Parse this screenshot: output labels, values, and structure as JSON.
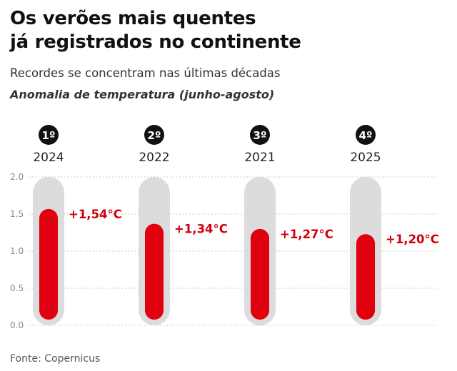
{
  "header": {
    "title_line1": "Os verões mais quentes",
    "title_line2": "já registrados no continente",
    "subtitle": "Recordes se concentram nas últimas décadas",
    "measure_label": "Anomalia de temperatura (junho-agosto)"
  },
  "footer": {
    "source": "Fonte: Copernicus"
  },
  "colors": {
    "fill": "#e0000f",
    "tube": "#dcdcdc",
    "badge": "#111111",
    "grid": "#bbbbbb",
    "value_text": "#d0000f"
  },
  "chart_data": {
    "type": "bar",
    "ylim": [
      0,
      2.0
    ],
    "yticks": [
      "0.0",
      "0.5",
      "1.0",
      "1.5",
      "2.0"
    ],
    "grid": true,
    "ranks": [
      "1º",
      "2º",
      "3º",
      "4º"
    ],
    "categories": [
      "2024",
      "2022",
      "2021",
      "2025"
    ],
    "values": [
      1.54,
      1.34,
      1.27,
      1.2
    ],
    "value_labels": [
      "+1,54°C",
      "+1,34°C",
      "+1,27°C",
      "+1,20°C"
    ]
  }
}
